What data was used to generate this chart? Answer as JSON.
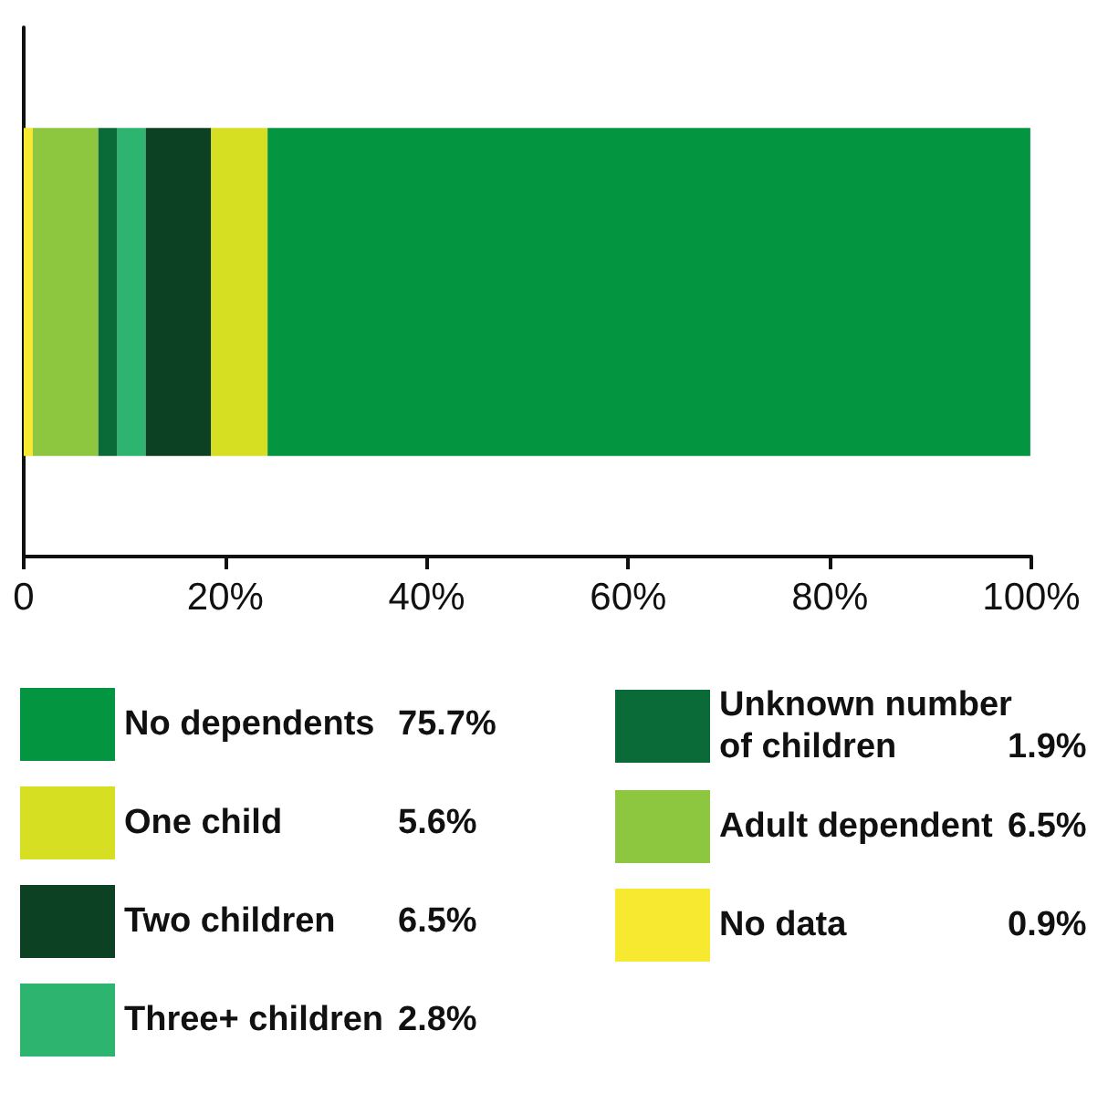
{
  "chart_data": {
    "type": "bar",
    "orientation": "horizontal",
    "stacked": true,
    "categories": [
      null
    ],
    "series": [
      {
        "name": "No data 0.9%",
        "color": "#f7e92f",
        "values": [
          0.9
        ]
      },
      {
        "name": "Adult dependent 6.5%",
        "color": "#8dc63f",
        "values": [
          6.5
        ]
      },
      {
        "name": "Unknown number of children 1.9%",
        "color": "#0b6b38",
        "values": [
          1.9
        ]
      },
      {
        "name": "Three+ children 2.8%",
        "color": "#2db46e",
        "values": [
          2.8
        ]
      },
      {
        "name": "Two children 6.5%",
        "color": "#0d4124",
        "values": [
          6.5
        ]
      },
      {
        "name": "One child 5.6%",
        "color": "#d7df23",
        "values": [
          5.6
        ]
      },
      {
        "name": "No dependents 75.7%",
        "color": "#039540",
        "values": [
          75.7
        ]
      }
    ],
    "xlim": [
      0,
      100
    ],
    "xticks": [
      0,
      {
        "value": 20,
        "label": "20%"
      },
      {
        "value": 40,
        "label": "40%"
      },
      {
        "value": 60,
        "label": "60%"
      },
      {
        "value": 80,
        "label": "80%"
      },
      {
        "value": 100,
        "label": "100%"
      }
    ],
    "tick_labels": "x",
    "grid": false,
    "legend": "bottom"
  }
}
